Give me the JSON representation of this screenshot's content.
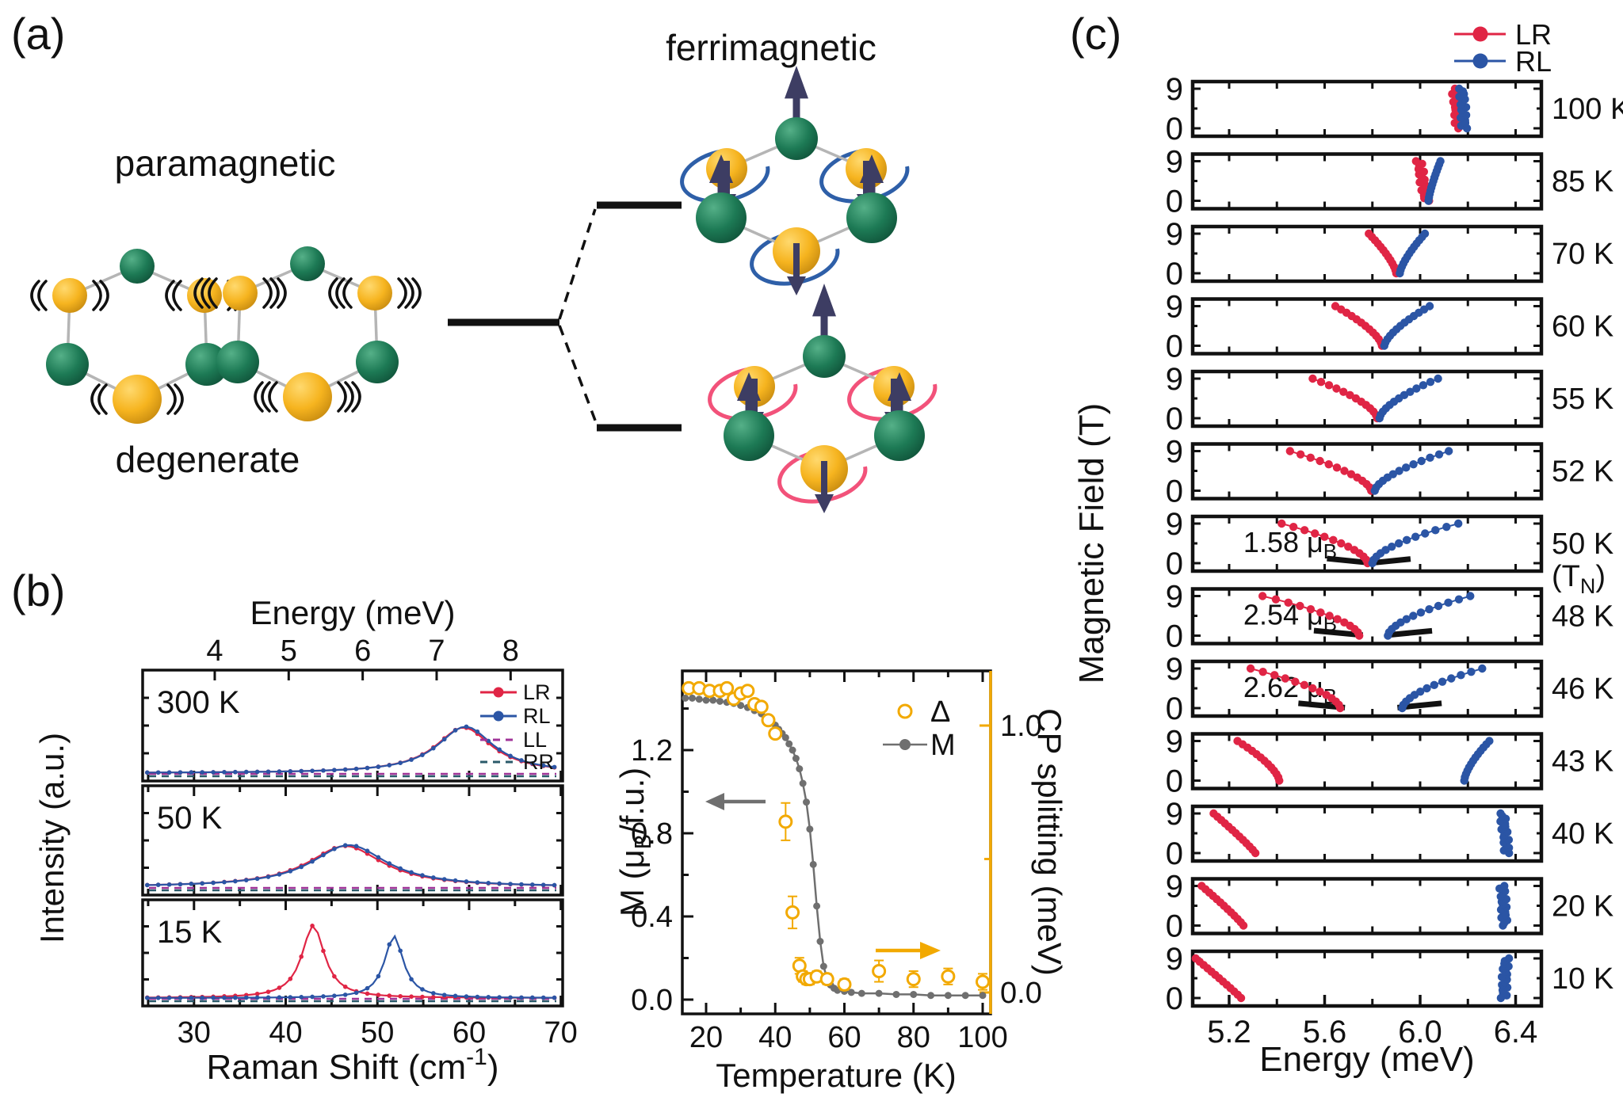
{
  "colors": {
    "lr_red": "#e02545",
    "rl_blue": "#2b55a5",
    "ll_purple": "#a03398",
    "rr_teal": "#2a5a6a",
    "m_gray": "#6f6f6f",
    "delta_orange": "#f2a900",
    "fit_black": "#111111",
    "green_sphere": "#1d7a55",
    "yellow_sphere": "#f6b41f",
    "spin_arrow": "#3d3d63",
    "bond_gray": "#b5b5b5",
    "blue_arc": "#2e5fa8",
    "red_arc": "#f2527a"
  },
  "panel_a": {
    "label": "(a)",
    "paramagnetic_label": "paramagnetic",
    "degenerate_label": "degenerate",
    "ferrimagnetic_label": "ferrimagnetic"
  },
  "panel_b": {
    "label": "(b)"
  },
  "panel_c": {
    "label": "(c)"
  },
  "chart_data": [
    {
      "type": "line",
      "name": "raman-spectra",
      "top_xlabel": "Energy (meV)",
      "top_ticks": [
        "4",
        "5",
        "6",
        "7",
        "8"
      ],
      "top_ticks_meV": [
        4,
        5,
        6,
        7,
        8
      ],
      "xlabel_parts": {
        "base": "Raman Shift (cm",
        "sup": "-1",
        "end": ")"
      },
      "x_ticks": [
        "30",
        "40",
        "50",
        "60",
        "70"
      ],
      "x_ticks_cm": [
        30,
        40,
        50,
        60,
        70
      ],
      "x_range_cm": [
        24.4,
        70.2
      ],
      "ylabel": "Intensity (a.u.)",
      "legend": [
        {
          "name": "LR",
          "style": "marker",
          "color": "lr_red"
        },
        {
          "name": "RL",
          "style": "marker",
          "color": "rl_blue"
        },
        {
          "name": "LL",
          "style": "dashed",
          "color": "ll_purple"
        },
        {
          "name": "RR",
          "style": "dashed",
          "color": "rr_teal"
        }
      ],
      "panels": [
        {
          "label": "300 K",
          "series": [
            {
              "name": "LR",
              "center": 59.4,
              "fwhm": 7.5,
              "height": 0.5
            },
            {
              "name": "RL",
              "center": 59.6,
              "fwhm": 7.5,
              "height": 0.51
            }
          ]
        },
        {
          "label": "50 K",
          "series": [
            {
              "name": "LR",
              "center": 46.5,
              "fwhm": 10.0,
              "height": 0.46
            },
            {
              "name": "RL",
              "center": 46.9,
              "fwhm": 10.0,
              "height": 0.47
            }
          ]
        },
        {
          "label": "15 K",
          "series": [
            {
              "name": "LR",
              "center": 43.0,
              "fwhm": 3.0,
              "height": 0.84
            },
            {
              "name": "RL",
              "center": 51.8,
              "fwhm": 2.5,
              "height": 0.72
            }
          ]
        }
      ]
    },
    {
      "type": "scatter",
      "name": "magnetization-vs-temperature",
      "xlabel": "Temperature (K)",
      "x_ticks": [
        "20",
        "40",
        "60",
        "80",
        "100"
      ],
      "x_ticks_K": [
        20,
        40,
        60,
        80,
        100
      ],
      "x_range": [
        13.1,
        102.3
      ],
      "left_ylabel_parts": {
        "base": "M (μ",
        "sub": "B",
        "end": "/f.u.)"
      },
      "left_yticks": [
        "0.0",
        "0.4",
        "0.8",
        "1.2"
      ],
      "left_yticks_val": [
        0.0,
        0.4,
        0.8,
        1.2
      ],
      "left_range": [
        -0.02,
        1.59
      ],
      "right_ylabel": "CP splitting (meV)",
      "right_yticks": [
        "0.0",
        "1.0"
      ],
      "right_yticks_val": [
        0.0,
        1.0
      ],
      "right_range": [
        -0.05,
        1.29
      ],
      "legend": [
        {
          "name": "Δ",
          "style": "open-circle",
          "color": "delta_orange"
        },
        {
          "name": "M",
          "style": "marker",
          "color": "m_gray"
        }
      ],
      "M_series": [
        [
          14,
          1.45
        ],
        [
          16,
          1.45
        ],
        [
          18,
          1.445
        ],
        [
          20,
          1.44
        ],
        [
          22,
          1.44
        ],
        [
          24,
          1.435
        ],
        [
          26,
          1.43
        ],
        [
          28,
          1.425
        ],
        [
          30,
          1.415
        ],
        [
          32,
          1.405
        ],
        [
          34,
          1.39
        ],
        [
          36,
          1.375
        ],
        [
          38,
          1.35
        ],
        [
          40,
          1.32
        ],
        [
          41,
          1.3
        ],
        [
          42,
          1.28
        ],
        [
          43,
          1.26
        ],
        [
          44,
          1.23
        ],
        [
          45,
          1.2
        ],
        [
          46,
          1.16
        ],
        [
          47,
          1.11
        ],
        [
          48,
          1.04
        ],
        [
          49,
          0.95
        ],
        [
          50,
          0.82
        ],
        [
          51,
          0.65
        ],
        [
          52,
          0.45
        ],
        [
          53,
          0.28
        ],
        [
          54,
          0.16
        ],
        [
          55,
          0.1
        ],
        [
          56,
          0.07
        ],
        [
          57,
          0.055
        ],
        [
          58,
          0.045
        ],
        [
          60,
          0.04
        ],
        [
          62,
          0.035
        ],
        [
          65,
          0.03
        ],
        [
          70,
          0.03
        ],
        [
          75,
          0.025
        ],
        [
          80,
          0.025
        ],
        [
          85,
          0.02
        ],
        [
          90,
          0.02
        ],
        [
          95,
          0.02
        ],
        [
          100,
          0.02
        ]
      ],
      "delta_series": [
        [
          15,
          1.14,
          0
        ],
        [
          18,
          1.14,
          0
        ],
        [
          21,
          1.13,
          0
        ],
        [
          24,
          1.13,
          0
        ],
        [
          26,
          1.14,
          0
        ],
        [
          28,
          1.1,
          0
        ],
        [
          30,
          1.12,
          0
        ],
        [
          32,
          1.13,
          0
        ],
        [
          34,
          1.08,
          0
        ],
        [
          36,
          1.07,
          0
        ],
        [
          38,
          1.02,
          0
        ],
        [
          40,
          0.97,
          0
        ],
        [
          43,
          0.64,
          0.07
        ],
        [
          45,
          0.3,
          0.06
        ],
        [
          47,
          0.1,
          0.03
        ],
        [
          48,
          0.06,
          0.02
        ],
        [
          49,
          0.05,
          0.02
        ],
        [
          50,
          0.05,
          0.02
        ],
        [
          52,
          0.06,
          0.02
        ],
        [
          55,
          0.05,
          0.02
        ],
        [
          60,
          0.03,
          0.02
        ],
        [
          70,
          0.08,
          0.04
        ],
        [
          80,
          0.05,
          0.03
        ],
        [
          90,
          0.06,
          0.03
        ],
        [
          100,
          0.04,
          0.03
        ]
      ]
    },
    {
      "type": "scatter",
      "name": "field-vs-energy-panels",
      "xlabel": "Energy (meV)",
      "x_ticks": [
        "5.2",
        "5.6",
        "6.0",
        "6.4"
      ],
      "x_ticks_meV": [
        5.2,
        5.6,
        6.0,
        6.4
      ],
      "x_range": [
        5.05,
        6.51
      ],
      "ylabel": "Magnetic Field (T)",
      "y_ticks": [
        "9",
        "0"
      ],
      "y_ticks_T": [
        9,
        0
      ],
      "legend": [
        {
          "name": "LR",
          "color": "lr_red"
        },
        {
          "name": "RL",
          "color": "rl_blue"
        }
      ],
      "panels": [
        {
          "temp": "100 K",
          "lr": {
            "e0": 6.16,
            "e9": 6.145,
            "mode": "wiggle"
          },
          "rl": {
            "e0": 6.185,
            "e9": 6.175,
            "mode": "wiggle"
          }
        },
        {
          "temp": "85 K",
          "lr": {
            "e0": 6.025,
            "e9": 5.995,
            "mode": "wiggle"
          },
          "rl": {
            "e0": 6.035,
            "e9": 6.085,
            "p": 1.3
          }
        },
        {
          "temp": "70 K",
          "lr": {
            "e0": 5.9,
            "e9": 5.785,
            "p": 1.4
          },
          "rl": {
            "e0": 5.915,
            "e9": 6.02,
            "p": 1.4
          }
        },
        {
          "temp": "60 K",
          "lr": {
            "e0": 5.84,
            "e9": 5.645,
            "p": 1.5
          },
          "rl": {
            "e0": 5.85,
            "e9": 6.04,
            "p": 1.5
          }
        },
        {
          "temp": "55 K",
          "lr": {
            "e0": 5.82,
            "e9": 5.55,
            "p": 1.6
          },
          "rl": {
            "e0": 5.83,
            "e9": 6.075,
            "p": 1.6
          }
        },
        {
          "temp": "52 K",
          "lr": {
            "e0": 5.795,
            "e9": 5.455,
            "p": 1.6
          },
          "rl": {
            "e0": 5.81,
            "e9": 6.12,
            "p": 1.6
          }
        },
        {
          "temp": "50 K",
          "temp2": {
            "pre": "(T",
            "sub": "N",
            "post": ")"
          },
          "annotation": {
            "text": "1.58 μ",
            "sub": "B"
          },
          "lr": {
            "e0": 5.78,
            "e9": 5.42,
            "p": 1.7
          },
          "rl": {
            "e0": 5.8,
            "e9": 6.16,
            "p": 1.7
          },
          "fits": [
            [
              [
                5.61,
                1.05
              ],
              [
                5.785,
                0.1
              ]
            ],
            [
              [
                5.805,
                0.1
              ],
              [
                5.96,
                0.95
              ]
            ]
          ]
        },
        {
          "temp": "48 K",
          "annotation": {
            "text": "2.54 μ",
            "sub": "B"
          },
          "lr": {
            "e0": 5.745,
            "e9": 5.34,
            "p": 1.7
          },
          "rl": {
            "e0": 5.865,
            "e9": 6.21,
            "p": 1.7
          },
          "fits": [
            [
              [
                5.555,
                1.15
              ],
              [
                5.76,
                0.12
              ]
            ],
            [
              [
                5.86,
                0.12
              ],
              [
                6.05,
                1.1
              ]
            ]
          ]
        },
        {
          "temp": "46 K",
          "annotation": {
            "text": "2.62 μ",
            "sub": "B"
          },
          "lr": {
            "e0": 5.665,
            "e9": 5.29,
            "p": 1.7
          },
          "rl": {
            "e0": 5.925,
            "e9": 6.26,
            "p": 1.7
          },
          "fits": [
            [
              [
                5.49,
                1.1
              ],
              [
                5.685,
                0.12
              ]
            ],
            [
              [
                5.905,
                0.12
              ],
              [
                6.09,
                1.1
              ]
            ]
          ]
        },
        {
          "temp": "43 K",
          "lr": {
            "e0": 5.41,
            "e9": 5.235,
            "p": 1.5
          },
          "rl": {
            "e0": 6.185,
            "e9": 6.29,
            "p": 1.5
          }
        },
        {
          "temp": "40 K",
          "lr": {
            "e0": 5.31,
            "e9": 5.135,
            "p": 1.1
          },
          "rl": {
            "e0": 6.365,
            "e9": 6.345,
            "mode": "wiggle"
          }
        },
        {
          "temp": "20 K",
          "lr": {
            "e0": 5.26,
            "e9": 5.085,
            "p": 1.1
          },
          "rl": {
            "e0": 6.355,
            "e9": 6.345,
            "mode": "wiggle"
          }
        },
        {
          "temp": "10 K",
          "lr": {
            "e0": 5.25,
            "e9": 5.06,
            "p": 1.05
          },
          "rl": {
            "e0": 6.35,
            "e9": 6.36,
            "mode": "wiggle"
          }
        }
      ]
    }
  ]
}
